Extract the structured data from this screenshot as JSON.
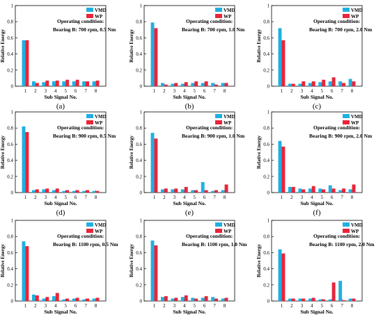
{
  "colors": {
    "vmd": "#1fb0e0",
    "wp": "#e8253a",
    "axis": "#000000"
  },
  "chart_data": [
    {
      "type": "bar",
      "panel_label": "(a)",
      "annotation_title": "Operating condition:",
      "annotation_text": "Bearing B: 700 rpm, 0.5 Nm",
      "categories": [
        "1",
        "2",
        "3",
        "4",
        "5",
        "6",
        "7",
        "8"
      ],
      "series": [
        {
          "name": "VMD",
          "values": [
            0.57,
            0.06,
            0.05,
            0.06,
            0.06,
            0.06,
            0.06,
            0.06
          ]
        },
        {
          "name": "WP",
          "values": [
            0.57,
            0.04,
            0.07,
            0.07,
            0.08,
            0.08,
            0.06,
            0.07
          ]
        }
      ],
      "xlabel": "Sub Signal No.",
      "ylabel": "Relative Energy",
      "ylim": [
        0,
        1
      ],
      "yticks": [
        "0",
        "0.2",
        "0.4",
        "0.6",
        "0.8",
        "1"
      ],
      "legend": "top-right"
    },
    {
      "type": "bar",
      "panel_label": "(b)",
      "annotation_title": "Operating condition:",
      "annotation_text": "Bearing B: 700 rpm, 1.0 Nm",
      "categories": [
        "1",
        "2",
        "3",
        "4",
        "5",
        "6",
        "7",
        "8"
      ],
      "series": [
        {
          "name": "VMD",
          "values": [
            0.79,
            0.04,
            0.03,
            0.03,
            0.04,
            0.04,
            0.04,
            0.04
          ]
        },
        {
          "name": "WP",
          "values": [
            0.72,
            0.02,
            0.04,
            0.05,
            0.06,
            0.06,
            0.02,
            0.04
          ]
        }
      ],
      "xlabel": "Sub Signal No.",
      "ylabel": "Relative Energy",
      "ylim": [
        0,
        1
      ],
      "yticks": [
        "0",
        "0.2",
        "0.4",
        "0.6",
        "0.8",
        "1"
      ],
      "legend": "top-right"
    },
    {
      "type": "bar",
      "panel_label": "(c)",
      "annotation_title": "Operating condition:",
      "annotation_text": "Bearing B: 700 rpm, 2.0 Nm",
      "categories": [
        "1",
        "2",
        "3",
        "4",
        "5",
        "6",
        "7",
        "8"
      ],
      "series": [
        {
          "name": "VMD",
          "values": [
            0.72,
            0.03,
            0.03,
            0.04,
            0.05,
            0.06,
            0.06,
            0.09
          ]
        },
        {
          "name": "WP",
          "values": [
            0.57,
            0.03,
            0.06,
            0.06,
            0.08,
            0.11,
            0.04,
            0.06
          ]
        }
      ],
      "xlabel": "Sub Signal No.",
      "ylabel": "Relative Energy",
      "ylim": [
        0,
        1
      ],
      "yticks": [
        "0",
        "0.2",
        "0.4",
        "0.6",
        "0.8",
        "1"
      ],
      "legend": "top-right"
    },
    {
      "type": "bar",
      "panel_label": "(d)",
      "annotation_title": "Operating condition:",
      "annotation_text": "Bearing B: 900 rpm, 0.5 Nm",
      "categories": [
        "1",
        "2",
        "3",
        "4",
        "5",
        "6",
        "7",
        "8"
      ],
      "series": [
        {
          "name": "VMD",
          "values": [
            0.82,
            0.03,
            0.04,
            0.03,
            0.02,
            0.02,
            0.02,
            0.02
          ]
        },
        {
          "name": "WP",
          "values": [
            0.75,
            0.04,
            0.05,
            0.05,
            0.03,
            0.03,
            0.03,
            0.02
          ]
        }
      ],
      "xlabel": "Sub Signal No.",
      "ylabel": "Relative Energy",
      "ylim": [
        0,
        1
      ],
      "yticks": [
        "0",
        "0.2",
        "0.4",
        "0.6",
        "0.8",
        "1"
      ],
      "legend": "top-right"
    },
    {
      "type": "bar",
      "panel_label": "(e)",
      "annotation_title": "Operating condition:",
      "annotation_text": "Bearing B: 900 rpm, 1.0 Nm",
      "categories": [
        "1",
        "2",
        "3",
        "4",
        "5",
        "6",
        "7",
        "8"
      ],
      "series": [
        {
          "name": "VMD",
          "values": [
            0.74,
            0.04,
            0.04,
            0.04,
            0.03,
            0.13,
            0.02,
            0.03
          ]
        },
        {
          "name": "WP",
          "values": [
            0.67,
            0.05,
            0.05,
            0.07,
            0.03,
            0.03,
            0.03,
            0.1
          ]
        }
      ],
      "xlabel": "Sub Signal No.",
      "ylabel": "Relative Energy",
      "ylim": [
        0,
        1
      ],
      "yticks": [
        "0",
        "0.2",
        "0.4",
        "0.6",
        "0.8",
        "1"
      ],
      "legend": "top-right"
    },
    {
      "type": "bar",
      "panel_label": "(f)",
      "annotation_title": "Operating condition:",
      "annotation_text": "Bearing B: 900 rpm, 2.0 Nm",
      "categories": [
        "1",
        "2",
        "3",
        "4",
        "5",
        "6",
        "7",
        "8"
      ],
      "series": [
        {
          "name": "VMD",
          "values": [
            0.64,
            0.07,
            0.05,
            0.05,
            0.05,
            0.09,
            0.03,
            0.04
          ]
        },
        {
          "name": "WP",
          "values": [
            0.57,
            0.07,
            0.04,
            0.08,
            0.04,
            0.05,
            0.05,
            0.1
          ]
        }
      ],
      "xlabel": "Sub Signal No.",
      "ylabel": "Relative Energy",
      "ylim": [
        0,
        1
      ],
      "yticks": [
        "0",
        "0.2",
        "0.4",
        "0.6",
        "0.8",
        "1"
      ],
      "legend": "top-right"
    },
    {
      "type": "bar",
      "panel_label": "(g)",
      "annotation_title": "Operating condition:",
      "annotation_text": "Bearing B: 1100 rpm, 0.5 Nm",
      "categories": [
        "1",
        "2",
        "3",
        "4",
        "5",
        "6",
        "7",
        "8"
      ],
      "series": [
        {
          "name": "VMD",
          "values": [
            0.74,
            0.08,
            0.03,
            0.06,
            0.02,
            0.03,
            0.02,
            0.03
          ]
        },
        {
          "name": "WP",
          "values": [
            0.68,
            0.07,
            0.05,
            0.1,
            0.03,
            0.04,
            0.03,
            0.04
          ]
        }
      ],
      "xlabel": "Sub Signal No.",
      "ylabel": "Relative Energy",
      "ylim": [
        0,
        1
      ],
      "yticks": [
        "0",
        "0.2",
        "0.4",
        "0.6",
        "0.8",
        "1"
      ],
      "legend": "top-right"
    },
    {
      "type": "bar",
      "panel_label": "(h)",
      "annotation_title": "Operating condition:",
      "annotation_text": "Bearing B: 1100 rpm, 1.0 Nm",
      "categories": [
        "1",
        "2",
        "3",
        "4",
        "5",
        "6",
        "7",
        "8"
      ],
      "series": [
        {
          "name": "VMD",
          "values": [
            0.75,
            0.05,
            0.03,
            0.05,
            0.04,
            0.04,
            0.05,
            0.03
          ]
        },
        {
          "name": "WP",
          "values": [
            0.69,
            0.06,
            0.04,
            0.07,
            0.03,
            0.06,
            0.03,
            0.04
          ]
        }
      ],
      "xlabel": "Sub Signal No.",
      "ylabel": "Relative Energy",
      "ylim": [
        0,
        1
      ],
      "yticks": [
        "0",
        "0.2",
        "0.4",
        "0.6",
        "0.8",
        "1"
      ],
      "legend": "top-right"
    },
    {
      "type": "bar",
      "panel_label": "(i)",
      "annotation_title": "Operating condition:",
      "annotation_text": "Bearing B: 1100 rpm, 2.0 Nm",
      "categories": [
        "1",
        "2",
        "3",
        "4",
        "5",
        "6",
        "7",
        "8"
      ],
      "series": [
        {
          "name": "VMD",
          "values": [
            0.64,
            0.03,
            0.03,
            0.03,
            0.02,
            0.02,
            0.25,
            0.03
          ]
        },
        {
          "name": "WP",
          "values": [
            0.59,
            0.03,
            0.03,
            0.04,
            0.02,
            0.23,
            0.01,
            0.03
          ]
        }
      ],
      "xlabel": "Sub Signal No.",
      "ylabel": "Relative Energy",
      "ylim": [
        0,
        1
      ],
      "yticks": [
        "0",
        "0.2",
        "0.4",
        "0.6",
        "0.8",
        "1"
      ],
      "legend": "top-right"
    }
  ]
}
